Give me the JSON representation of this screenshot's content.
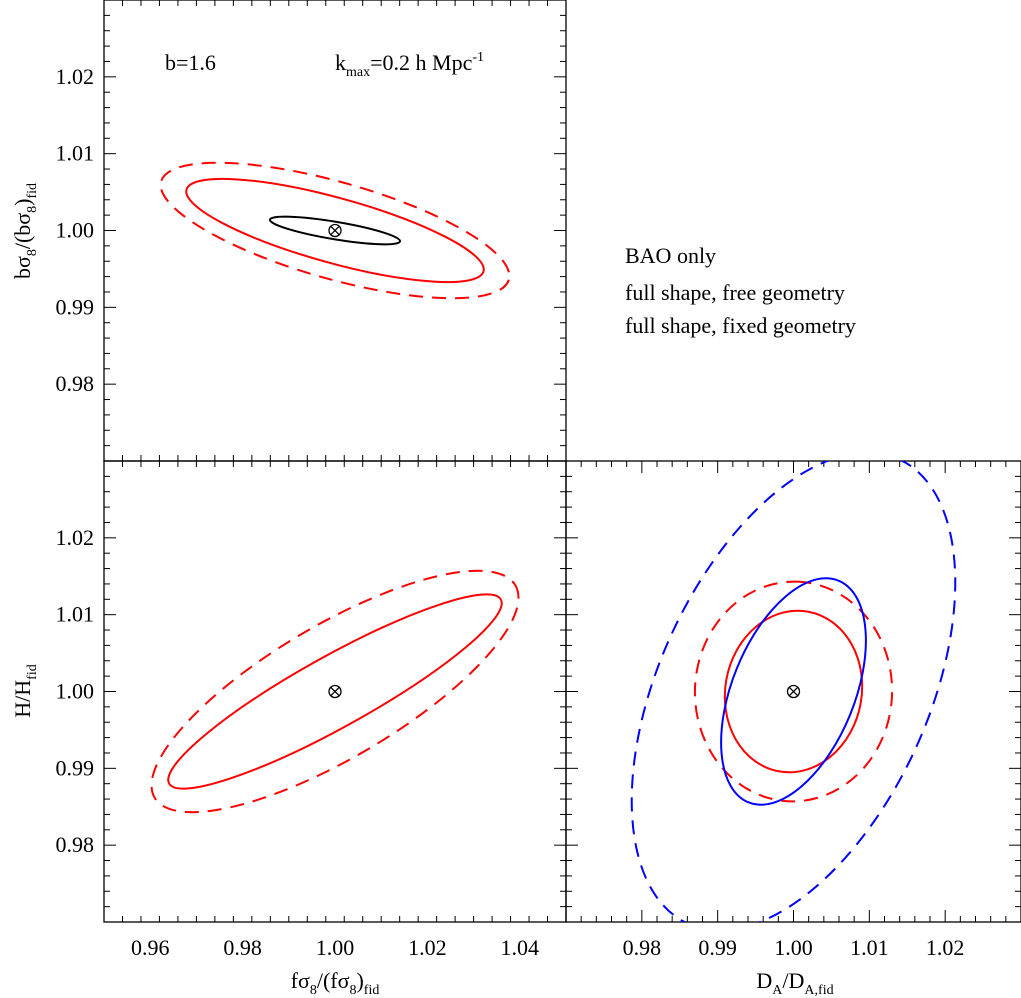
{
  "annotations": {
    "bias": "b=1.6",
    "kmax_prefix": "k",
    "kmax_sub": "max",
    "kmax_mid": "=0.2 h Mpc",
    "kmax_sup": "-1"
  },
  "legend": {
    "bao": "BAO only",
    "free": "full shape, free geometry",
    "fixed": "full shape, fixed geometry"
  },
  "axis_labels": {
    "x_left": {
      "main": "fσ",
      "sub1": "8",
      "mid": "/(fσ",
      "sub2": "8",
      "end": ")",
      "sub3": "fid"
    },
    "x_right": {
      "main": "D",
      "sub1": "A",
      "mid": "/D",
      "sub2": "A,fid"
    },
    "y_top": {
      "main": "bσ",
      "sub1": "8",
      "mid": "/(bσ",
      "sub2": "8",
      "end": ")",
      "sub3": "fid"
    },
    "y_bottom": {
      "main": "H/H",
      "sub1": "fid"
    }
  },
  "colors": {
    "bao": "#0000ff",
    "free": "#ff0000",
    "fixed": "#000000",
    "axes": "#000000"
  },
  "chart_data": [
    {
      "type": "scatter",
      "panel": "top-left",
      "title": "",
      "xlabel": "fσ8/(fσ8)fid",
      "ylabel": "bσ8/(bσ8)fid",
      "xlim": [
        0.95,
        1.05
      ],
      "ylim": [
        0.97,
        1.03
      ],
      "xticks": [
        0.96,
        0.98,
        1.0,
        1.02,
        1.04
      ],
      "yticks": [
        0.98,
        0.99,
        1.0,
        1.01,
        1.02
      ],
      "show_x_tick_labels": false,
      "show_y_tick_labels": true,
      "fiducial": [
        1.0,
        1.0
      ],
      "contours": [
        {
          "series": "fixed",
          "style": "solid",
          "vertices": [
            [
              0.9865,
              1.001
            ],
            [
              0.996,
              1.0015
            ],
            [
              1.0135,
              0.999
            ],
            [
              1.004,
              0.9985
            ]
          ]
        },
        {
          "series": "free",
          "style": "solid",
          "vertices": [
            [
              0.969,
              1.0037
            ],
            [
              0.9913,
              1.0056
            ],
            [
              1.031,
              0.9963
            ],
            [
              1.0087,
              0.9944
            ]
          ]
        },
        {
          "series": "free",
          "style": "dashed",
          "vertices": [
            [
              0.964,
              1.0037
            ],
            [
              0.9887,
              1.008
            ],
            [
              1.036,
              0.9963
            ],
            [
              1.0113,
              0.992
            ]
          ]
        }
      ]
    },
    {
      "type": "scatter",
      "panel": "bottom-left",
      "title": "",
      "xlabel": "fσ8/(fσ8)fid",
      "ylabel": "H/Hfid",
      "xlim": [
        0.95,
        1.05
      ],
      "ylim": [
        0.97,
        1.03
      ],
      "xticks": [
        0.96,
        0.98,
        1.0,
        1.02,
        1.04
      ],
      "yticks": [
        0.98,
        0.99,
        1.0,
        1.01,
        1.02
      ],
      "show_x_tick_labels": true,
      "show_y_tick_labels": true,
      "fiducial": [
        1.0,
        1.0
      ],
      "contours": [
        {
          "series": "free",
          "style": "solid",
          "vertices": [
            [
              0.9695,
              0.9931
            ],
            [
              0.9807,
              0.9894
            ],
            [
              1.0305,
              1.0069
            ],
            [
              1.0193,
              1.0106
            ]
          ]
        },
        {
          "series": "free",
          "style": "dashed",
          "vertices": [
            [
              0.9645,
              0.9935
            ],
            [
              0.9822,
              0.9857
            ],
            [
              1.0355,
              1.0065
            ],
            [
              1.0178,
              1.0143
            ]
          ]
        }
      ]
    },
    {
      "type": "scatter",
      "panel": "bottom-right",
      "title": "",
      "xlabel": "DA/DA,fid",
      "ylabel": "",
      "xlim": [
        0.97,
        1.03
      ],
      "ylim": [
        0.97,
        1.03
      ],
      "xticks": [
        0.98,
        0.99,
        1.0,
        1.01,
        1.02
      ],
      "yticks": [
        0.98,
        0.99,
        1.0,
        1.01,
        1.02
      ],
      "show_x_tick_labels": true,
      "show_y_tick_labels": false,
      "fiducial": [
        1.0,
        1.0
      ],
      "contours": [
        {
          "series": "free",
          "style": "solid",
          "vertices": [
            [
              0.991,
              1.0005
            ],
            [
              0.999,
              0.9895
            ],
            [
              1.009,
              0.9995
            ],
            [
              1.001,
              1.0105
            ]
          ]
        },
        {
          "series": "free",
          "style": "dashed",
          "vertices": [
            [
              0.987,
              1.0
            ],
            [
              0.9999,
              0.9857
            ],
            [
              1.013,
              1.0
            ],
            [
              1.0001,
              1.0143
            ]
          ]
        },
        {
          "series": "bao",
          "style": "solid",
          "vertices": [
            [
              0.9912,
              0.999
            ],
            [
              0.9963,
              0.9853
            ],
            [
              1.0088,
              1.001
            ],
            [
              1.0037,
              1.0147
            ]
          ]
        },
        {
          "series": "bao",
          "style": "dashed",
          "vertices": [
            [
              0.9795,
              0.994
            ],
            [
              0.9941,
              0.9695
            ],
            [
              1.0205,
              1.006
            ],
            [
              1.0059,
              1.0305
            ]
          ]
        }
      ]
    }
  ]
}
